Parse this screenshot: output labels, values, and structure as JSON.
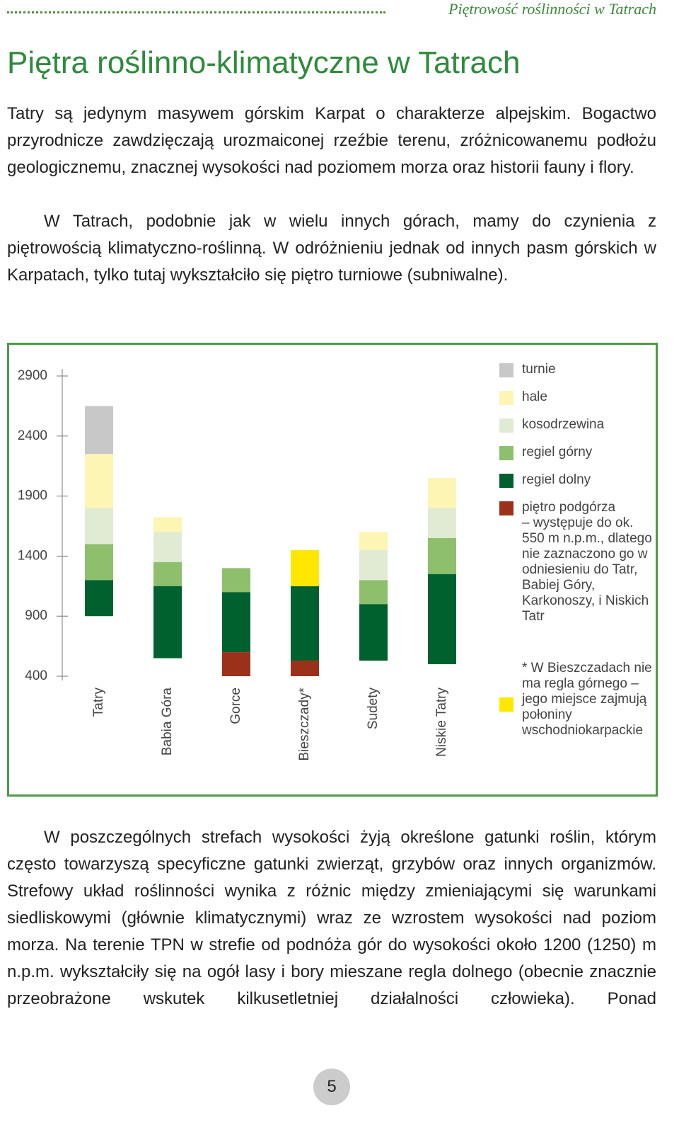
{
  "header": {
    "running_title": "Piętrowość roślinności w Tatrach"
  },
  "title": "Piętra roślinno-klimatyczne w Tatrach",
  "paragraphs": [
    "Tatry są jedynym masywem górskim Karpat o charakterze alpejskim. Bogactwo przyrodnicze zawdzięczają urozmaiconej rzeźbie terenu, zróżnicowanemu podłożu geologicznemu, znacznej wysokości nad poziomem morza oraz historii fauny i flory.",
    "W Tatrach, podobnie jak w wielu innych górach, mamy do czynienia z piętrowością klimatyczno-roślinną. W odróżnieniu jednak od innych pasm górskich w Karpatach, tylko tutaj wykształciło się piętro turniowe (subniwalne).",
    "W poszczególnych strefach wysokości żyją określone gatunki roślin, którym często towarzyszą specyficzne gatunki zwierząt, grzybów oraz innych organizmów. Strefowy układ roślinności wynika z różnic między zmieniającymi się warunkami siedliskowymi (głównie klimatycznymi) wraz ze wzrostem wysokości nad poziom morza. Na terenie TPN w strefie od podnóża gór do wysokości około 1200 (1250) m n.p.m. wykształciły się na ogół lasy i bory mieszane regla dolnego (obecnie znacznie przeobrażone wskutek kilkusetletniej działalności człowieka). Ponad"
  ],
  "chart_data": {
    "type": "floating_bar",
    "categories": [
      "Tatry",
      "Babia Góra",
      "Gorce",
      "Bieszczady*",
      "Sudety",
      "Niskie Tatry"
    ],
    "ylim": [
      400,
      2900
    ],
    "yticks": [
      400,
      900,
      1400,
      1900,
      2400,
      2900
    ],
    "series": [
      {
        "name": "turnie",
        "color": "#c8c8c8",
        "values": [
          [
            2250,
            2650
          ],
          null,
          null,
          null,
          null,
          null
        ]
      },
      {
        "name": "hale",
        "color": "#fdf5b4",
        "values": [
          [
            1800,
            2250
          ],
          [
            1600,
            1725
          ],
          null,
          null,
          [
            1450,
            1600
          ],
          [
            1800,
            2050
          ]
        ]
      },
      {
        "name": "kosodrzewina",
        "color": "#e1ebd4",
        "values": [
          [
            1500,
            1800
          ],
          [
            1350,
            1600
          ],
          null,
          null,
          [
            1200,
            1450
          ],
          [
            1550,
            1800
          ]
        ]
      },
      {
        "name": "regiel górny",
        "color": "#8dbf6c",
        "values": [
          [
            1200,
            1500
          ],
          [
            1150,
            1350
          ],
          [
            1100,
            1300
          ],
          null,
          [
            1000,
            1200
          ],
          [
            1250,
            1550
          ]
        ]
      },
      {
        "name": "regiel dolny",
        "color": "#00612e",
        "values": [
          [
            900,
            1200
          ],
          [
            550,
            1150
          ],
          [
            600,
            1100
          ],
          [
            530,
            1150
          ],
          [
            530,
            1000
          ],
          [
            500,
            1250
          ]
        ]
      },
      {
        "name": "piętro podgórza",
        "color": "#9b3118",
        "values": [
          null,
          null,
          [
            400,
            600
          ],
          [
            400,
            530
          ],
          null,
          null
        ]
      },
      {
        "name": "* W Bieszczadach nie ma regla górnego – jego miejsce zajmują połoniny wschodniokarpackie",
        "color": "#ffe800",
        "values": [
          null,
          null,
          null,
          [
            1150,
            1450
          ],
          null,
          null
        ]
      }
    ],
    "podgorze_note": "– występuje do ok. 550 m n.p.m., dlatego nie zaznaczono go w odniesieniu do Tatr, Babiej Góry, Karkonoszy, i Niskich Tatr"
  },
  "page_number": "5"
}
